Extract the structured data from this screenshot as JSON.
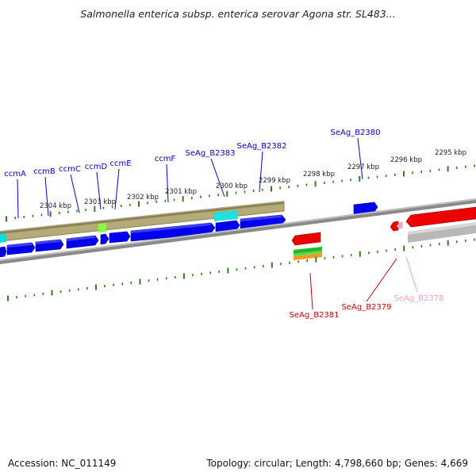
{
  "title": "Salmonella enterica subsp. enterica serovar Agona str. SL483...",
  "footer": {
    "accession": "Accession: NC_011149",
    "summary": "Topology: circular; Length: 4,798,660 bp; Genes: 4,669"
  },
  "colors": {
    "forward_gene": "#0000ee",
    "reverse_gene": "#ee0000",
    "pseudo_reverse": "#f4a8c8",
    "operon_band": "#b5ab7a",
    "tick": "#2e7d1a",
    "backbone": "#808080"
  },
  "kbp_ticks": [
    "2304 kbp",
    "2303 kbp",
    "2302 kbp",
    "2301 kbp",
    "2300 kbp",
    "2299 kbp",
    "2298 kbp",
    "2297 kbp",
    "2296 kbp",
    "2295 kbp"
  ],
  "gene_labels_top": [
    "ccmA",
    "ccmB",
    "ccmC",
    "ccmD",
    "ccmE",
    "ccmF",
    "SeAg_B2383",
    "SeAg_B2382",
    "SeAg_B2380"
  ],
  "gene_labels_bottom": [
    {
      "text": "SeAg_B2381",
      "color": "#cc0000"
    },
    {
      "text": "SeAg_B2379",
      "color": "#cc0000"
    },
    {
      "text": "SeAg_B2378",
      "color": "#f4a0c0"
    }
  ]
}
